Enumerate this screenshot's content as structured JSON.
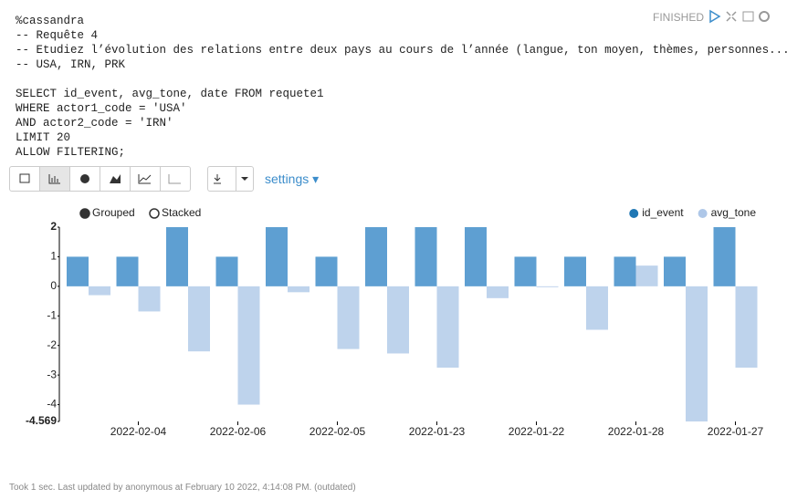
{
  "paragraph": {
    "status": "FINISHED",
    "comments": [
      "%cassandra",
      "-- Requête 4",
      "-- Etudiez l’évolution des relations entre deux pays au cours de l’année (langue, ton moyen, thèmes, personnes...).",
      "-- USA, IRN, PRK"
    ],
    "query": [
      "SELECT id_event, avg_tone, date FROM requete1",
      "WHERE actor1_code = 'USA'",
      "AND actor2_code = 'IRN'",
      "LIMIT 20",
      "ALLOW FILTERING;"
    ],
    "settings": "settings",
    "footer": "Took 1 sec. Last updated by anonymous at February 10 2022, 4:14:08 PM. (outdated)"
  },
  "chart_data": {
    "type": "bar",
    "modes": [
      "Grouped",
      "Stacked"
    ],
    "selected_mode": "Grouped",
    "categories": [
      null,
      "2022-02-04",
      null,
      "2022-02-06",
      null,
      "2022-02-05",
      null,
      "2022-01-23",
      null,
      "2022-01-22",
      null,
      "2022-01-28",
      null,
      "2022-01-27"
    ],
    "series": [
      {
        "name": "id_event",
        "color": "#5e9fd2",
        "legend_color": "#1f77b4",
        "values": [
          1,
          1,
          2,
          1,
          2,
          1,
          2,
          2,
          2,
          1,
          1,
          1,
          1,
          2
        ]
      },
      {
        "name": "avg_tone",
        "color": "#bed3ec",
        "legend_color": "#aec7e8",
        "values": [
          -0.3,
          -0.85,
          -2.2,
          -4.0,
          -0.2,
          -2.12,
          -2.27,
          -2.75,
          -0.4,
          -0.03,
          -1.47,
          0.7,
          -4.569,
          -2.75
        ]
      }
    ],
    "ylim": [
      -4.569,
      2
    ],
    "yticks": [
      2,
      1,
      0,
      -1,
      -2,
      -3,
      -4,
      -4.569
    ],
    "legend": "top-right"
  }
}
